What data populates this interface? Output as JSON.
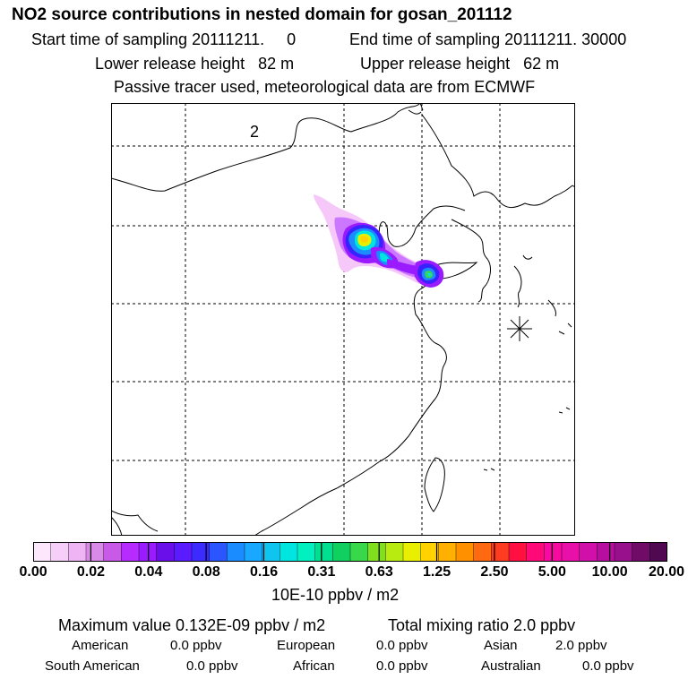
{
  "header": {
    "title": "NO2 source contributions in nested domain for gosan_201112",
    "start_time": "Start time of sampling 20111211.     0",
    "end_time": "End time of sampling 20111211. 30000",
    "lower_release": "Lower release height   82 m",
    "upper_release": "Upper release height   62 m",
    "tracer_note": "Passive tracer used, meteorological data are from ECMWF"
  },
  "map": {
    "panel_label": "2",
    "receptor_marker": "asterisk-icon",
    "plume_colors": [
      "#f6c8fa",
      "#cc77ff",
      "#9a1bff",
      "#3a22ff",
      "#1a8cff",
      "#00e5e0",
      "#38d84a",
      "#e8f000",
      "#ffd200"
    ]
  },
  "legend": {
    "scale_colors": [
      "#fde7fd",
      "#f6cff8",
      "#eeb4f4",
      "#d98ae8",
      "#c95ae8",
      "#b62bff",
      "#9a1bff",
      "#6a0fe9",
      "#5a1bff",
      "#3c2bff",
      "#2a55ff",
      "#1a8cff",
      "#19a8ff",
      "#10c4f0",
      "#00e5e0",
      "#00f0c0",
      "#00e090",
      "#10d060",
      "#38d84a",
      "#80e020",
      "#b8ec10",
      "#e8f000",
      "#ffd200",
      "#ffb000",
      "#ff9000",
      "#ff6a10",
      "#ff3c20",
      "#ff1040",
      "#ff0a78",
      "#f80aa0",
      "#e810a8",
      "#d010a8",
      "#b80ea0",
      "#98108c",
      "#700c68",
      "#500850"
    ],
    "ticks": [
      "0.00",
      "0.02",
      "0.04",
      "0.08",
      "0.16",
      "0.31",
      "0.63",
      "1.25",
      "2.50",
      "5.00",
      "10.00",
      "20.00"
    ],
    "unit": "10E-10 ppbv / m2"
  },
  "summary": {
    "max_label": "Maximum value  0.132E-09 ppbv / m2",
    "total_label": "Total mixing ratio       2.0 ppbv",
    "american_label": "American",
    "american_value": "0.0 ppbv",
    "european_label": "European",
    "european_value": "0.0 ppbv",
    "asian_label": "Asian",
    "asian_value": "2.0 ppbv",
    "south_american_label": "South American",
    "south_american_value": "0.0 ppbv",
    "african_label": "African",
    "african_value": "0.0 ppbv",
    "australian_label": "Australian",
    "australian_value": "0.0 ppbv"
  }
}
